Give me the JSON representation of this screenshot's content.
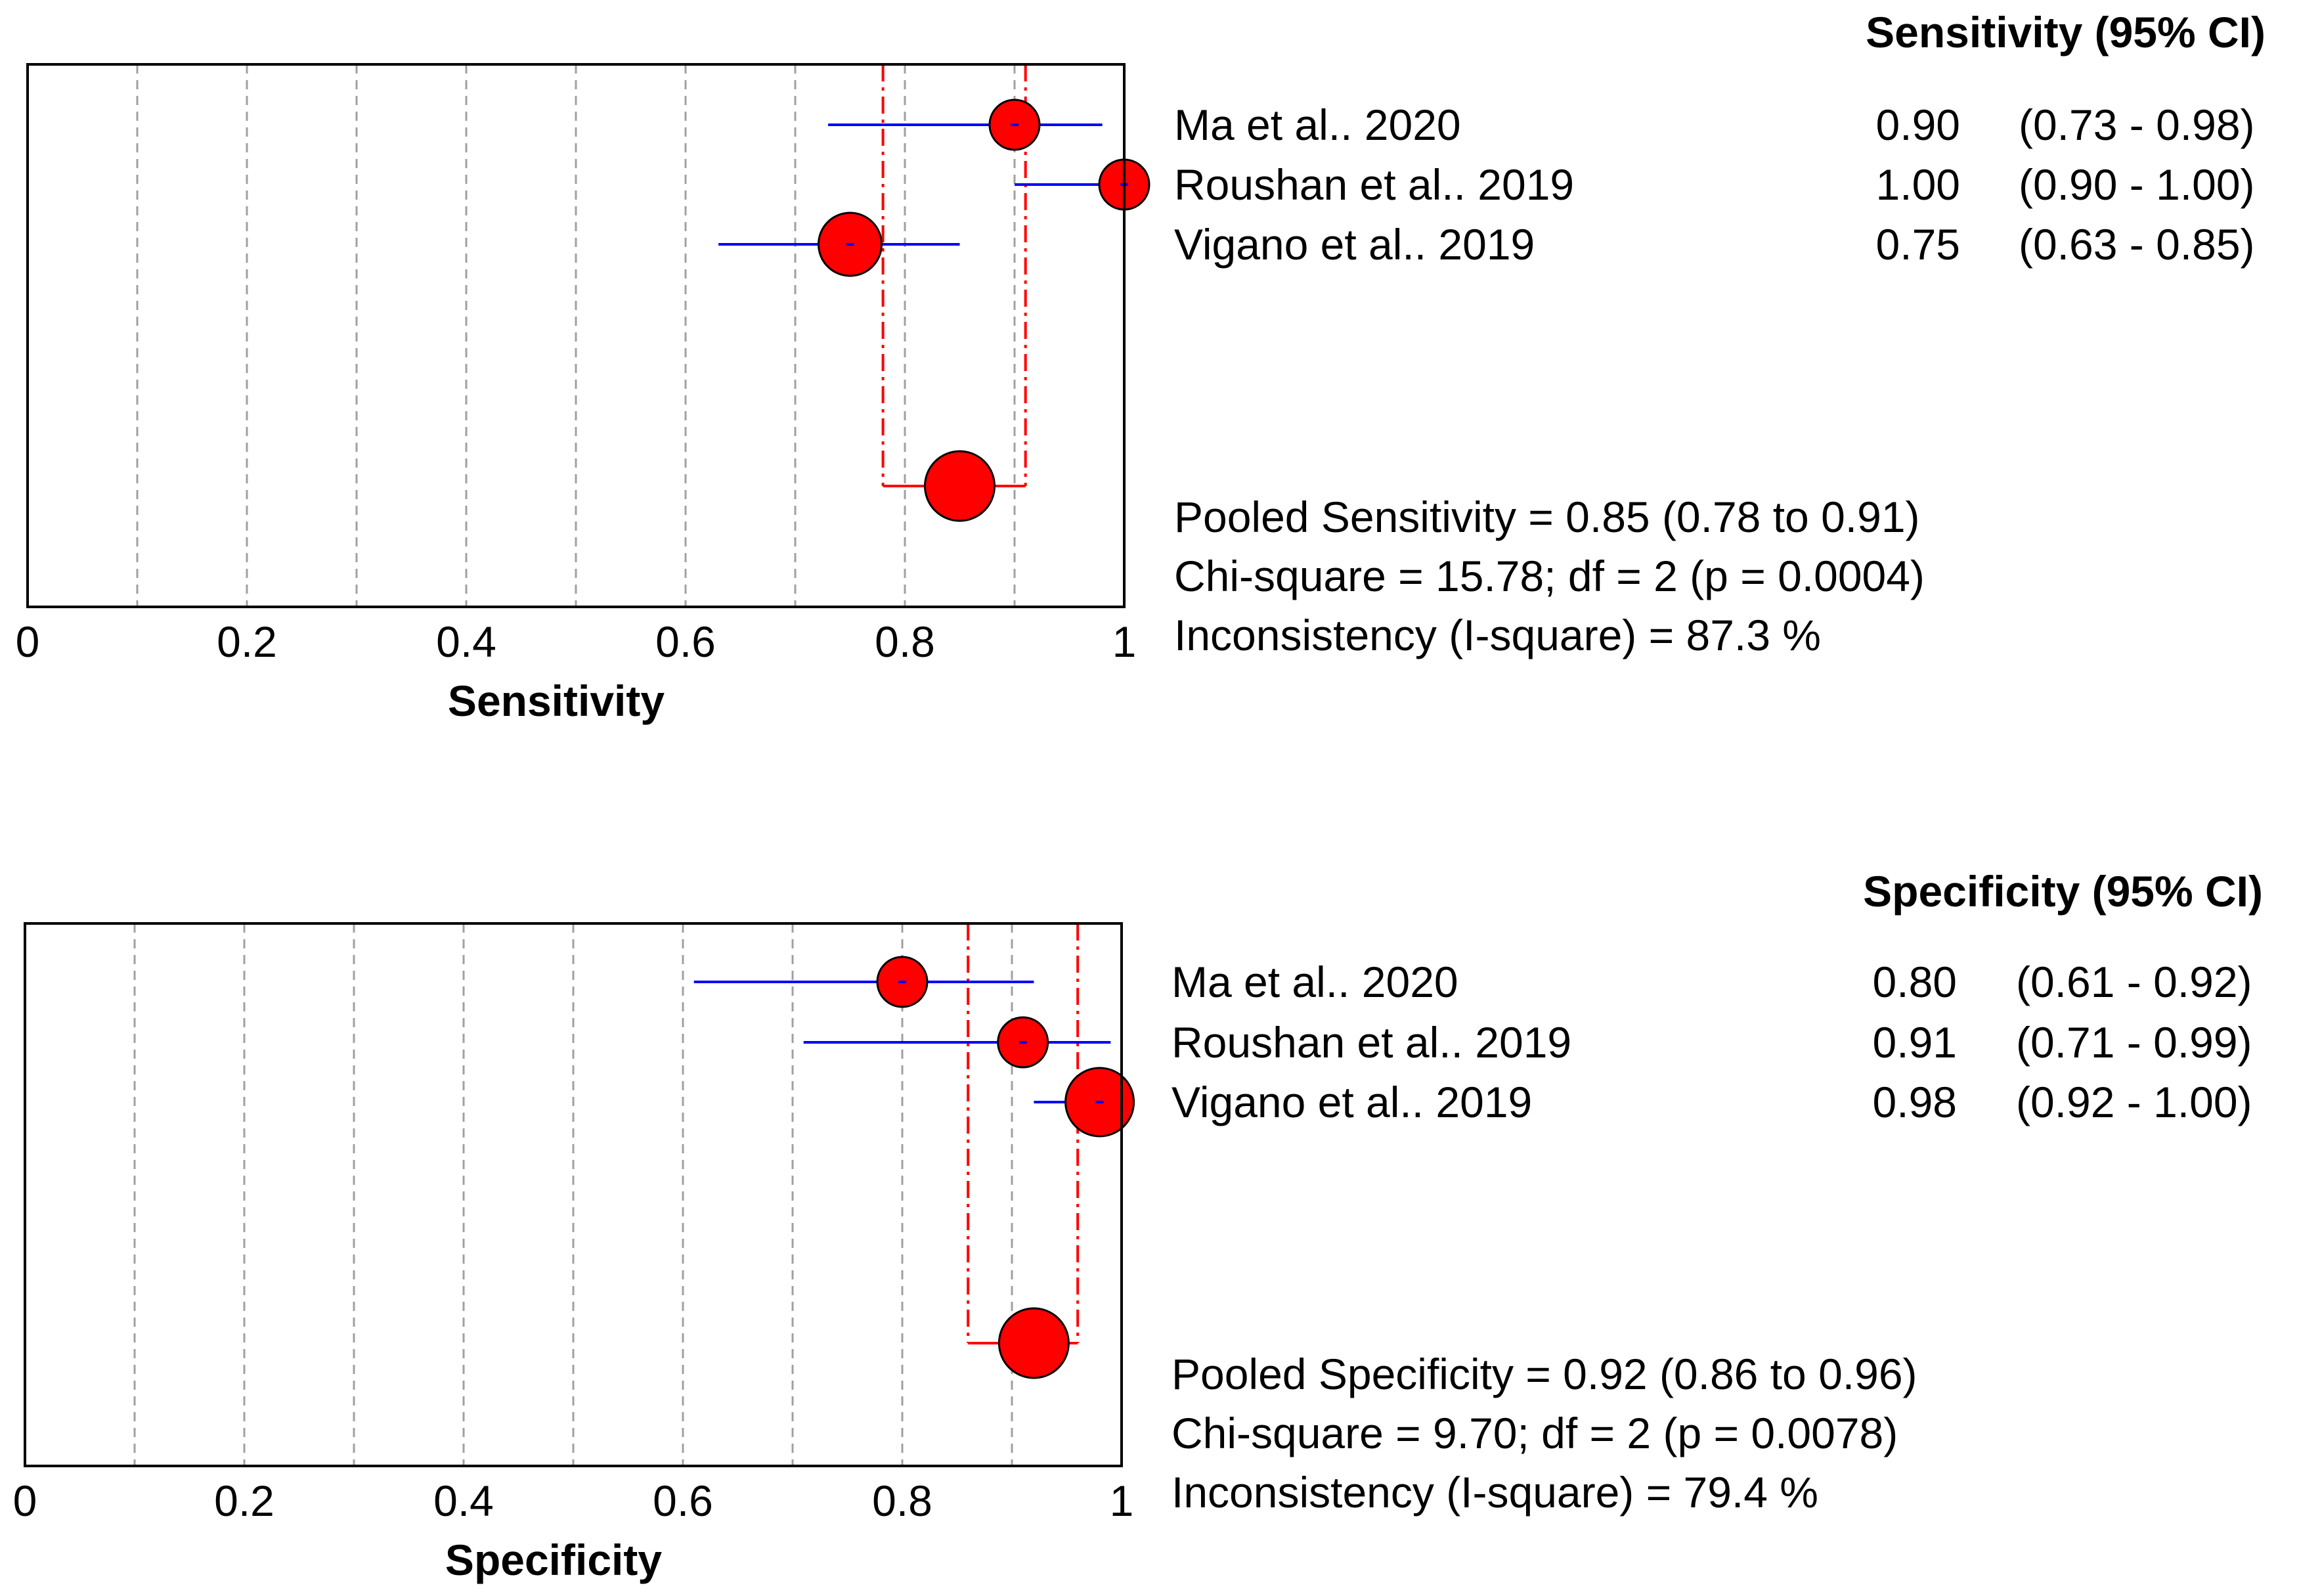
{
  "chart_data": [
    {
      "type": "forest",
      "measure": "Sensitivity",
      "header": "Sensitivity (95% CI)",
      "xlabel": "Sensitivity",
      "xlim": [
        0,
        1
      ],
      "ticks": [
        "0",
        "0.2",
        "0.4",
        "0.6",
        "0.8",
        "1"
      ],
      "studies": [
        {
          "name": "Ma et al.. 2020",
          "estimate": 0.9,
          "lower": 0.73,
          "upper": 0.98,
          "value_text": "0.90",
          "ci_text": "(0.73 - 0.98)"
        },
        {
          "name": "Roushan et al.. 2019",
          "estimate": 1.0,
          "lower": 0.9,
          "upper": 1.0,
          "value_text": "1.00",
          "ci_text": "(0.90 - 1.00)"
        },
        {
          "name": "Vigano et al.. 2019",
          "estimate": 0.75,
          "lower": 0.63,
          "upper": 0.85,
          "value_text": "0.75",
          "ci_text": "(0.63 - 0.85)"
        }
      ],
      "pooled": {
        "estimate": 0.85,
        "lower": 0.78,
        "upper": 0.91
      },
      "summary_lines": [
        "Pooled Sensitivity = 0.85 (0.78 to 0.91)",
        "Chi-square = 15.78; df =  2 (p = 0.0004)",
        "Inconsistency (I-square) = 87.3 %"
      ]
    },
    {
      "type": "forest",
      "measure": "Specificity",
      "header": "Specificity (95% CI)",
      "xlabel": "Specificity",
      "xlim": [
        0,
        1
      ],
      "ticks": [
        "0",
        "0.2",
        "0.4",
        "0.6",
        "0.8",
        "1"
      ],
      "studies": [
        {
          "name": "Ma et al.. 2020",
          "estimate": 0.8,
          "lower": 0.61,
          "upper": 0.92,
          "value_text": "0.80",
          "ci_text": "(0.61 - 0.92)"
        },
        {
          "name": "Roushan et al.. 2019",
          "estimate": 0.91,
          "lower": 0.71,
          "upper": 0.99,
          "value_text": "0.91",
          "ci_text": "(0.71 - 0.99)"
        },
        {
          "name": "Vigano et al.. 2019",
          "estimate": 0.98,
          "lower": 0.92,
          "upper": 1.0,
          "value_text": "0.98",
          "ci_text": "(0.92 - 1.00)"
        }
      ],
      "pooled": {
        "estimate": 0.92,
        "lower": 0.86,
        "upper": 0.96
      },
      "summary_lines": [
        "Pooled Specificity = 0.92 (0.86 to 0.96)",
        "Chi-square = 9.70; df =  2 (p = 0.0078)",
        "Inconsistency (I-square) = 79.4 %"
      ]
    }
  ],
  "colors": {
    "marker_fill": "#ff0000",
    "ci_line": "#0000ff",
    "pooled_line": "#ff0000",
    "grid": "#a0a0a0",
    "frame": "#000000"
  }
}
